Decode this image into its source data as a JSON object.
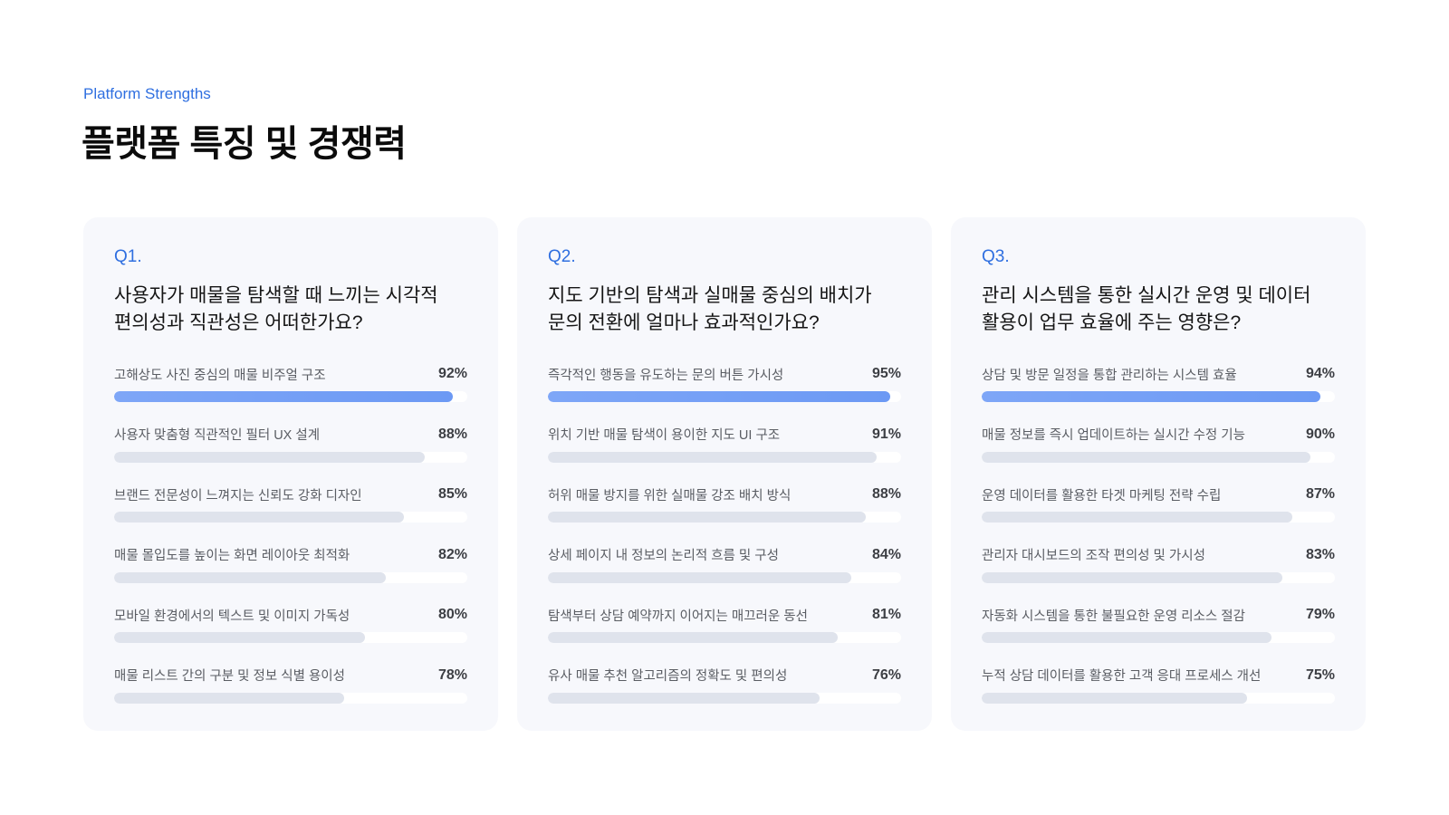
{
  "header": {
    "eyebrow": "Platform Strengths",
    "title": "플랫폼 특징 및 경쟁력"
  },
  "colors": {
    "accent": "#2f6fe0",
    "card_bg": "#f7f8fc",
    "bar_highlight": "#7ea6f7",
    "bar_default": "#dfe3ec",
    "track": "#ffffff"
  },
  "cards": [
    {
      "num": "Q1.",
      "question": "사용자가 매물을 탐색할 때 느끼는 시각적 편의성과 직관성은 어떠한가요?",
      "items": [
        {
          "label": "고해상도 사진 중심의 매물 비주얼 구조",
          "pct": "92%",
          "fill": 96
        },
        {
          "label": "사용자 맞춤형 직관적인 필터 UX 설계",
          "pct": "88%",
          "fill": 88
        },
        {
          "label": "브랜드 전문성이 느껴지는 신뢰도 강화 디자인",
          "pct": "85%",
          "fill": 82
        },
        {
          "label": "매물 몰입도를 높이는 화면 레이아웃 최적화",
          "pct": "82%",
          "fill": 77
        },
        {
          "label": "모바일 환경에서의 텍스트 및 이미지 가독성",
          "pct": "80%",
          "fill": 71
        },
        {
          "label": "매물 리스트 간의 구분 및 정보 식별 용이성",
          "pct": "78%",
          "fill": 65
        }
      ]
    },
    {
      "num": "Q2.",
      "question": "지도 기반의 탐색과 실매물 중심의 배치가 문의 전환에 얼마나 효과적인가요?",
      "items": [
        {
          "label": "즉각적인 행동을 유도하는 문의 버튼 가시성",
          "pct": "95%",
          "fill": 97
        },
        {
          "label": "위치 기반 매물 탐색이 용이한 지도 UI 구조",
          "pct": "91%",
          "fill": 93
        },
        {
          "label": "허위 매물 방지를 위한 실매물 강조 배치 방식",
          "pct": "88%",
          "fill": 90
        },
        {
          "label": "상세 페이지 내 정보의 논리적 흐름 및 구성",
          "pct": "84%",
          "fill": 86
        },
        {
          "label": "탐색부터 상담 예약까지 이어지는 매끄러운 동선",
          "pct": "81%",
          "fill": 82
        },
        {
          "label": "유사 매물 추천 알고리즘의 정확도 및 편의성",
          "pct": "76%",
          "fill": 77
        }
      ]
    },
    {
      "num": "Q3.",
      "question": "관리 시스템을 통한 실시간 운영 및 데이터 활용이 업무 효율에 주는 영향은?",
      "items": [
        {
          "label": "상담 및 방문 일정을 통합 관리하는 시스템 효율",
          "pct": "94%",
          "fill": 96
        },
        {
          "label": "매물 정보를 즉시 업데이트하는 실시간 수정 기능",
          "pct": "90%",
          "fill": 93
        },
        {
          "label": "운영 데이터를 활용한 타겟 마케팅 전략 수립",
          "pct": "87%",
          "fill": 88
        },
        {
          "label": "관리자 대시보드의 조작 편의성 및 가시성",
          "pct": "83%",
          "fill": 85
        },
        {
          "label": "자동화 시스템을 통한 불필요한 운영 리소스 절감",
          "pct": "79%",
          "fill": 82
        },
        {
          "label": "누적 상담 데이터를 활용한 고객 응대 프로세스 개선",
          "pct": "75%",
          "fill": 75
        }
      ]
    }
  ],
  "chart_data": [
    {
      "type": "bar",
      "orientation": "horizontal",
      "title": "Q1. 사용자가 매물을 탐색할 때 느끼는 시각적 편의성과 직관성은 어떠한가요?",
      "categories": [
        "고해상도 사진 중심의 매물 비주얼 구조",
        "사용자 맞춤형 직관적인 필터 UX 설계",
        "브랜드 전문성이 느껴지는 신뢰도 강화 디자인",
        "매물 몰입도를 높이는 화면 레이아웃 최적화",
        "모바일 환경에서의 텍스트 및 이미지 가독성",
        "매물 리스트 간의 구분 및 정보 식별 용이성"
      ],
      "values": [
        92,
        88,
        85,
        82,
        80,
        78
      ],
      "unit": "%",
      "grid": false,
      "legend": "none"
    },
    {
      "type": "bar",
      "orientation": "horizontal",
      "title": "Q2. 지도 기반의 탐색과 실매물 중심의 배치가 문의 전환에 얼마나 효과적인가요?",
      "categories": [
        "즉각적인 행동을 유도하는 문의 버튼 가시성",
        "위치 기반 매물 탐색이 용이한 지도 UI 구조",
        "허위 매물 방지를 위한 실매물 강조 배치 방식",
        "상세 페이지 내 정보의 논리적 흐름 및 구성",
        "탐색부터 상담 예약까지 이어지는 매끄러운 동선",
        "유사 매물 추천 알고리즘의 정확도 및 편의성"
      ],
      "values": [
        95,
        91,
        88,
        84,
        81,
        76
      ],
      "unit": "%",
      "grid": false,
      "legend": "none"
    },
    {
      "type": "bar",
      "orientation": "horizontal",
      "title": "Q3. 관리 시스템을 통한 실시간 운영 및 데이터 활용이 업무 효율에 주는 영향은?",
      "categories": [
        "상담 및 방문 일정을 통합 관리하는 시스템 효율",
        "매물 정보를 즉시 업데이트하는 실시간 수정 기능",
        "운영 데이터를 활용한 타겟 마케팅 전략 수립",
        "관리자 대시보드의 조작 편의성 및 가시성",
        "자동화 시스템을 통한 불필요한 운영 리소스 절감",
        "누적 상담 데이터를 활용한 고객 응대 프로세스 개선"
      ],
      "values": [
        94,
        90,
        87,
        83,
        79,
        75
      ],
      "unit": "%",
      "grid": false,
      "legend": "none"
    }
  ]
}
